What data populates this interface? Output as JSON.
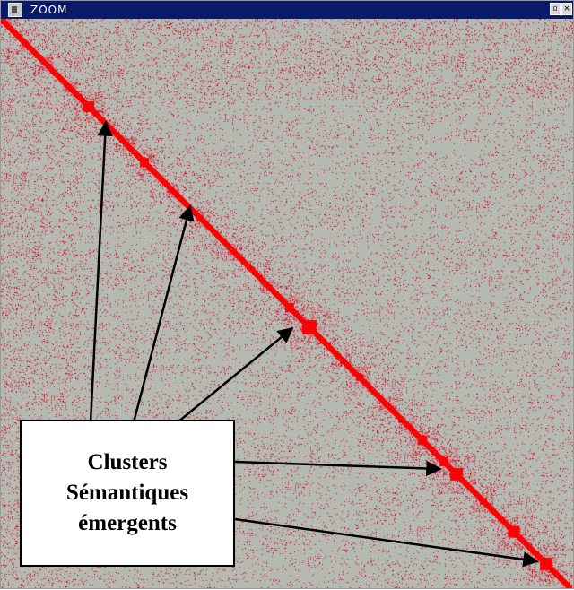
{
  "window": {
    "title": "ZOOM",
    "icon": "app-icon",
    "buttons": [
      {
        "name": "restore",
        "glyph": "▫"
      },
      {
        "name": "close",
        "glyph": "✕"
      }
    ]
  },
  "matrix": {
    "background_color": "#b4b9b2",
    "cell_color": "#e8001c",
    "diagonal_color": "#ff0000"
  },
  "callout": {
    "lines": [
      "Clusters",
      "Sémantiques",
      "émergents"
    ]
  }
}
